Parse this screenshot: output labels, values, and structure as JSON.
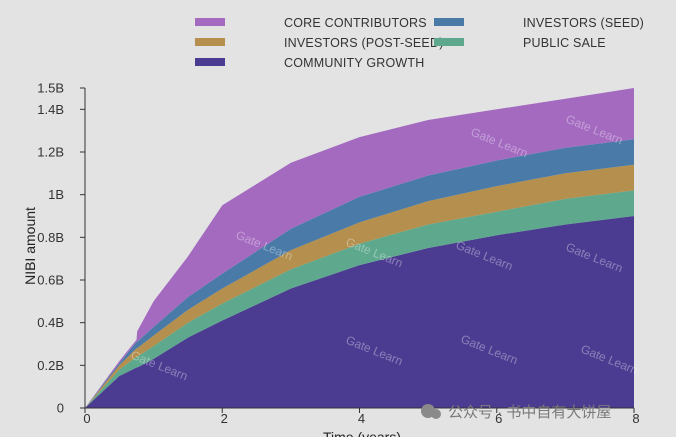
{
  "chart_data": {
    "type": "area",
    "stacked": true,
    "xlabel": "Time (years)",
    "ylabel": "NIBI amount",
    "xlim": [
      0,
      8
    ],
    "ylim": [
      0,
      1.5
    ],
    "x_ticks": [
      0,
      2,
      4,
      6,
      8
    ],
    "x_tick_labels": [
      "0",
      "2",
      "4",
      "6",
      "8"
    ],
    "y_ticks": [
      0,
      0.2,
      0.4,
      0.6,
      0.8,
      1.0,
      1.2,
      1.4,
      1.5
    ],
    "y_tick_labels": [
      "0",
      "0.2B",
      "0.4B",
      "0.6B",
      "0.8B",
      "1B",
      "1.2B",
      "1.4B",
      "1.5B"
    ],
    "grid": false,
    "legend_position": "top",
    "x": [
      0,
      0.5,
      0.75,
      0.76,
      1,
      1.5,
      2,
      3,
      4,
      5,
      6,
      7,
      8
    ],
    "series": [
      {
        "name": "COMMUNITY GROWTH",
        "color": "#4b3b91",
        "values": [
          0,
          0.15,
          0.19,
          0.19,
          0.23,
          0.33,
          0.41,
          0.56,
          0.67,
          0.75,
          0.81,
          0.86,
          0.9
        ]
      },
      {
        "name": "PUBLIC SALE",
        "color": "#5ea88d",
        "values": [
          0,
          0.03,
          0.05,
          0.05,
          0.06,
          0.07,
          0.08,
          0.09,
          0.1,
          0.11,
          0.11,
          0.12,
          0.12
        ]
      },
      {
        "name": "INVESTORS (POST-SEED)",
        "color": "#b48f4d",
        "values": [
          0,
          0.02,
          0.04,
          0.04,
          0.05,
          0.06,
          0.07,
          0.09,
          0.1,
          0.11,
          0.12,
          0.12,
          0.12
        ]
      },
      {
        "name": "INVESTORS (SEED)",
        "color": "#4a7ba8",
        "values": [
          0,
          0.01,
          0.03,
          0.03,
          0.04,
          0.06,
          0.07,
          0.1,
          0.12,
          0.12,
          0.12,
          0.12,
          0.12
        ]
      },
      {
        "name": "CORE CONTRIBUTORS",
        "color": "#a36ac0",
        "values": [
          0,
          0.01,
          0.01,
          0.05,
          0.12,
          0.19,
          0.32,
          0.31,
          0.28,
          0.26,
          0.24,
          0.23,
          0.24
        ]
      }
    ],
    "legend_order": [
      "CORE CONTRIBUTORS",
      "INVESTORS (SEED)",
      "INVESTORS (POST-SEED)",
      "PUBLIC SALE",
      "COMMUNITY GROWTH"
    ],
    "watermark": "Gate Learn",
    "footer_watermark": "公众号 · 书中自有大饼屋"
  }
}
